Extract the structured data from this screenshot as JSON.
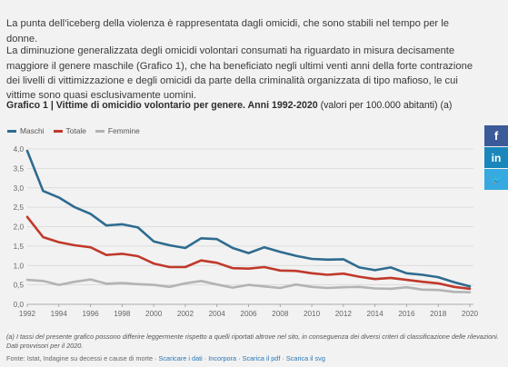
{
  "intro": {
    "p1": "La punta dell’iceberg della violenza è rappresentata dagli omicidi, che sono stabili nel tempo per le donne.",
    "p2": "La diminuzione generalizzata degli omicidi volontari consumati ha riguardato in misura decisamente maggiore il genere maschile (Grafico 1), che ha beneficiato negli ultimi venti anni della forte contrazione dei livelli di vittimizzazione e degli omicidi da parte della criminalità organizzata di tipo mafioso, le cui vittime sono quasi esclusivamente uomini."
  },
  "chart_heading": {
    "bold": "Grafico 1 | Vittime di omicidio volontario per genere. Anni 1992-2020",
    "rest": " (valori per 100.000 abitanti) (a)"
  },
  "chart_data": {
    "type": "line",
    "x": [
      1992,
      1993,
      1994,
      1995,
      1996,
      1997,
      1998,
      1999,
      2000,
      2001,
      2002,
      2003,
      2004,
      2005,
      2006,
      2007,
      2008,
      2009,
      2010,
      2011,
      2012,
      2013,
      2014,
      2015,
      2016,
      2017,
      2018,
      2019,
      2020
    ],
    "series": [
      {
        "name": "Maschi",
        "color": "#2e6b8f",
        "values": [
          3.95,
          2.92,
          2.75,
          2.5,
          2.33,
          2.03,
          2.06,
          1.98,
          1.62,
          1.52,
          1.45,
          1.7,
          1.68,
          1.45,
          1.32,
          1.47,
          1.35,
          1.25,
          1.17,
          1.15,
          1.16,
          0.95,
          0.88,
          0.95,
          0.8,
          0.76,
          0.7,
          0.57,
          0.46
        ]
      },
      {
        "name": "Totale",
        "color": "#c0392b",
        "values": [
          2.25,
          1.73,
          1.6,
          1.52,
          1.47,
          1.27,
          1.3,
          1.24,
          1.05,
          0.96,
          0.96,
          1.13,
          1.07,
          0.93,
          0.92,
          0.96,
          0.87,
          0.86,
          0.8,
          0.76,
          0.79,
          0.71,
          0.65,
          0.68,
          0.63,
          0.58,
          0.54,
          0.45,
          0.4
        ]
      },
      {
        "name": "Femmine",
        "color": "#b3b3b3",
        "values": [
          0.63,
          0.6,
          0.5,
          0.58,
          0.64,
          0.53,
          0.55,
          0.52,
          0.5,
          0.45,
          0.54,
          0.6,
          0.51,
          0.43,
          0.5,
          0.46,
          0.42,
          0.51,
          0.45,
          0.42,
          0.44,
          0.45,
          0.41,
          0.4,
          0.44,
          0.38,
          0.37,
          0.32,
          0.31
        ]
      }
    ],
    "ylim": [
      0,
      4
    ],
    "yticks": [
      "0,0",
      "0,5",
      "1,0",
      "1,5",
      "2,0",
      "2,5",
      "3,0",
      "3,5",
      "4,0"
    ],
    "xticks": [
      "1992",
      "1994",
      "1996",
      "1998",
      "2000",
      "2002",
      "2004",
      "2006",
      "2008",
      "2010",
      "2012",
      "2014",
      "2016",
      "2018",
      "2020"
    ],
    "grid": true,
    "legend_position": "top-left"
  },
  "note": "(a) I tassi del presente grafico possono differire leggermente rispetto a quelli riportati altrove nel sito, in conseguenza dei diversi criteri di classificazione delle rilevazioni. Dati provvisori per il 2020.",
  "source": {
    "text": "Fonte: Istat, Indagine su decessi e cause di morte · ",
    "links": [
      "Scaricare i dati",
      "Incorpora",
      "Scarica il pdf",
      "Scarica il svg"
    ]
  },
  "social": {
    "facebook": "f",
    "linkedin": "in",
    "twitter": "🐦"
  }
}
